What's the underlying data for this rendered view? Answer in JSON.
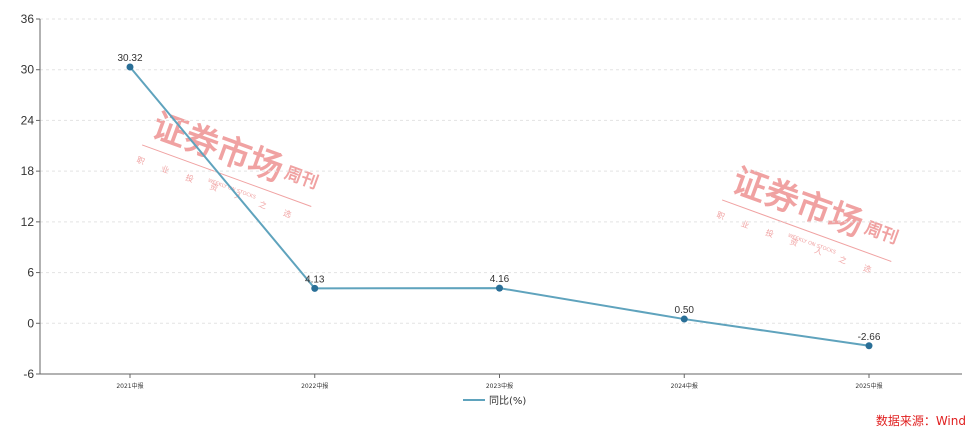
{
  "chart_data": {
    "type": "line",
    "categories": [
      "2021中报",
      "2022中报",
      "2023中报",
      "2024中报",
      "2025中报"
    ],
    "series": [
      {
        "name": "同比(%)",
        "values": [
          30.32,
          4.13,
          4.16,
          0.5,
          -2.66
        ],
        "labels": [
          "30.32",
          "4.13",
          "4.16",
          "0.50",
          "-2.66"
        ]
      }
    ],
    "ylim": [
      -6,
      36
    ],
    "yticks": [
      -6,
      0,
      6,
      12,
      18,
      24,
      30,
      36
    ],
    "grid": true,
    "legend_position": "bottom-center",
    "line_color": "#5fa3bd",
    "marker_color": "#2a6f97"
  },
  "source_text": "数据来源：Wind",
  "watermark": {
    "title": "证券市场",
    "suffix": "周刊",
    "subtitle": "WEEKLY ON STOCKS",
    "slogan": [
      "职",
      "业",
      "投",
      "资",
      "人",
      "之",
      "选"
    ]
  },
  "colors": {
    "source": "#e02020",
    "grid": "#e3e3e3",
    "watermark": "#f0a2a2"
  }
}
